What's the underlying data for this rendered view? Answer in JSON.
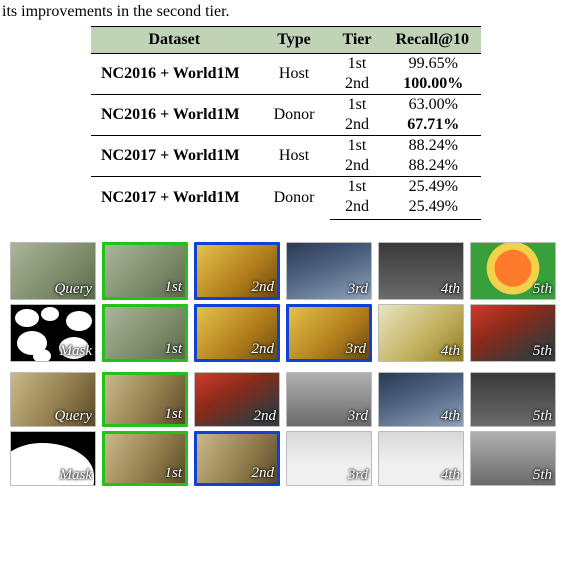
{
  "caption_fragment": "its improvements in the second tier.",
  "table": {
    "headers": [
      "Dataset",
      "Type",
      "Tier",
      "Recall@10"
    ],
    "header_bg": "#c0d3b7",
    "rows": [
      {
        "dataset": "NC2016 + World1M",
        "type": "Host",
        "tier": "1st",
        "recall": "99.65%",
        "bold": false,
        "sep": "thick"
      },
      {
        "dataset": "",
        "type": "",
        "tier": "2nd",
        "recall": "100.00%",
        "bold": true,
        "sep": ""
      },
      {
        "dataset": "NC2016 + World1M",
        "type": "Donor",
        "tier": "1st",
        "recall": "63.00%",
        "bold": false,
        "sep": "thin"
      },
      {
        "dataset": "",
        "type": "",
        "tier": "2nd",
        "recall": "67.71%",
        "bold": true,
        "sep": ""
      },
      {
        "dataset": "NC2017 + World1M",
        "type": "Host",
        "tier": "1st",
        "recall": "88.24%",
        "bold": false,
        "sep": "thick"
      },
      {
        "dataset": "",
        "type": "",
        "tier": "2nd",
        "recall": "88.24%",
        "bold": false,
        "sep": ""
      },
      {
        "dataset": "NC2017 + World1M",
        "type": "Donor",
        "tier": "1st",
        "recall": "25.49%",
        "bold": false,
        "sep": "thin"
      },
      {
        "dataset": "",
        "type": "",
        "tier": "2nd",
        "recall": "25.49%",
        "bold": false,
        "sep": ""
      }
    ]
  },
  "grid": {
    "border_green": "#22c21a",
    "border_blue": "#1040d8",
    "groups": [
      {
        "rows": [
          [
            {
              "label": "Query",
              "bg": "bg-a"
            },
            {
              "label": "1st",
              "bg": "bg-a",
              "border": "green"
            },
            {
              "label": "2nd",
              "bg": "bg-c",
              "border": "blue"
            },
            {
              "label": "3rd",
              "bg": "bg-d"
            },
            {
              "label": "4th",
              "bg": "bg-e"
            },
            {
              "label": "5th",
              "bg": "bg-f"
            }
          ],
          [
            {
              "label": "Mask",
              "bg": "bg-l",
              "mask": true
            },
            {
              "label": "1st",
              "bg": "bg-a",
              "border": "green"
            },
            {
              "label": "2nd",
              "bg": "bg-c",
              "border": "blue"
            },
            {
              "label": "3rd",
              "bg": "bg-c",
              "border": "blue"
            },
            {
              "label": "4th",
              "bg": "bg-g"
            },
            {
              "label": "5th",
              "bg": "bg-h"
            }
          ]
        ]
      },
      {
        "rows": [
          [
            {
              "label": "Query",
              "bg": "bg-i"
            },
            {
              "label": "1st",
              "bg": "bg-i",
              "border": "green"
            },
            {
              "label": "2nd",
              "bg": "bg-h"
            },
            {
              "label": "3rd",
              "bg": "bg-j"
            },
            {
              "label": "4th",
              "bg": "bg-d"
            },
            {
              "label": "5th",
              "bg": "bg-e"
            }
          ],
          [
            {
              "label": "Mask",
              "bg": "bg-l",
              "mask": true,
              "maskStyle": 2
            },
            {
              "label": "1st",
              "bg": "bg-i",
              "border": "green"
            },
            {
              "label": "2nd",
              "bg": "bg-i",
              "border": "blue"
            },
            {
              "label": "3rd",
              "bg": "bg-k"
            },
            {
              "label": "4th",
              "bg": "bg-k"
            },
            {
              "label": "5th",
              "bg": "bg-j"
            }
          ]
        ]
      }
    ]
  }
}
